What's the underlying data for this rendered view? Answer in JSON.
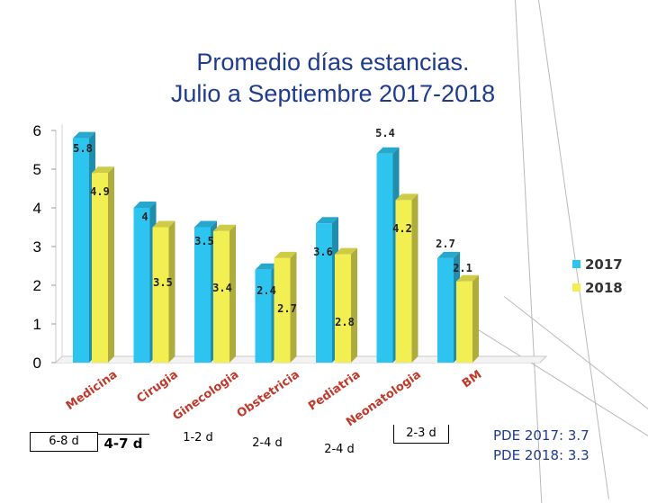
{
  "title": {
    "line1": "Promedio días estancias.",
    "line2": "Julio a Septiembre 2017-2018"
  },
  "chart_data": {
    "type": "bar",
    "categories": [
      "Medicina",
      "Cirugia",
      "Ginecologia",
      "Obstetricia",
      "Pediatria",
      "Neonatologia",
      "BM"
    ],
    "series": [
      {
        "name": "2017",
        "values": [
          5.8,
          4,
          3.5,
          2.4,
          3.6,
          5.4,
          2.7
        ],
        "color": "#2ec4f0"
      },
      {
        "name": "2018",
        "values": [
          4.9,
          3.5,
          3.4,
          2.7,
          2.8,
          4.2,
          2.1
        ],
        "color": "#f2ef53"
      }
    ],
    "ylim": [
      0,
      6
    ],
    "yticks": [
      "0",
      "1",
      "2",
      "3",
      "4",
      "5",
      "6"
    ],
    "grid": false,
    "legend": "right",
    "category_color": "#c0392b"
  },
  "stay_ranges": [
    {
      "label": "6-8 d",
      "boxed": true,
      "bold": false
    },
    {
      "label": "4-7 d",
      "boxed": true,
      "bold": true
    },
    {
      "label": "1-2 d",
      "boxed": false,
      "bold": false
    },
    {
      "label": "2-4 d",
      "boxed": false,
      "bold": false
    },
    {
      "label": "2-4 d",
      "boxed": false,
      "bold": false
    },
    {
      "label": "2-3 d",
      "boxed": true,
      "bold": false
    }
  ],
  "pde": {
    "line2017": "PDE 2017: 3.7",
    "line2018": "PDE 2018: 3.3"
  }
}
